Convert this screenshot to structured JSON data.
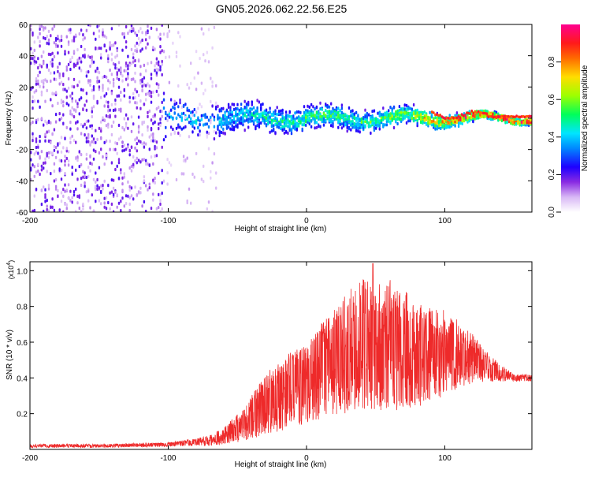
{
  "title": "GN05.2026.062.22.56.E25",
  "chart_data": [
    {
      "type": "heatmap",
      "name": "spectrogram",
      "xlabel": "Height of straight line (km)",
      "ylabel": "Frequency (Hz)",
      "xlim": [
        -200,
        163
      ],
      "ylim": [
        -60,
        60
      ],
      "xticks": [
        -200,
        -100,
        0,
        100
      ],
      "yticks": [
        60,
        40,
        20,
        0,
        -20,
        -40,
        -60
      ],
      "colorbar": {
        "label": "Normalized spectral amplitude",
        "range": [
          0.0,
          1.0
        ],
        "ticks": [
          0.0,
          0.2,
          0.4,
          0.6,
          0.8
        ],
        "tick_labels": [
          "0.0",
          "0.2",
          "0.4",
          "0.6",
          "0.8"
        ],
        "colormap": [
          "#ffffff",
          "#c9a6f0",
          "#7b1fe0",
          "#2a00ff",
          "#0066ff",
          "#00d4ff",
          "#00ff66",
          "#ccff00",
          "#ffb300",
          "#ff1a1a",
          "#ff0080"
        ]
      },
      "description_points": [
        {
          "x": -200,
          "noise_level": 0.25,
          "band_halfwidth_hz": 60
        },
        {
          "x": -110,
          "noise_level": 0.22,
          "band_halfwidth_hz": 60
        },
        {
          "x": -100,
          "noise_level": 0.3,
          "band_halfwidth_hz": 14
        },
        {
          "x": -50,
          "noise_level": 0.35,
          "band_halfwidth_hz": 12
        },
        {
          "x": 0,
          "noise_level": 0.45,
          "band_halfwidth_hz": 10
        },
        {
          "x": 50,
          "noise_level": 0.45,
          "band_halfwidth_hz": 9
        },
        {
          "x": 100,
          "noise_level": 0.7,
          "band_halfwidth_hz": 6
        },
        {
          "x": 140,
          "noise_level": 0.9,
          "band_halfwidth_hz": 3
        },
        {
          "x": 163,
          "noise_level": 0.85,
          "band_halfwidth_hz": 3
        }
      ]
    },
    {
      "type": "line",
      "name": "snr",
      "xlabel": "Height of straight line (km)",
      "ylabel": "SNR (10 * v/v)",
      "yscale_label": "(x10",
      "yscale_exponent": "4",
      "xlim": [
        -200,
        163
      ],
      "ylim": [
        0,
        1.05
      ],
      "xticks": [
        -200,
        -100,
        0,
        100
      ],
      "yticks": [
        0.2,
        0.4,
        0.6,
        0.8,
        1.0
      ],
      "ytick_labels": [
        "0.2",
        "0.4",
        "0.6",
        "0.8",
        "1.0"
      ],
      "color": "#ee2a2a",
      "envelope": {
        "x": [
          -200,
          -150,
          -100,
          -80,
          -70,
          -60,
          -50,
          -40,
          -30,
          -20,
          -10,
          0,
          10,
          20,
          30,
          40,
          50,
          60,
          70,
          80,
          90,
          100,
          110,
          120,
          130,
          140,
          150,
          163
        ],
        "upper": [
          0.03,
          0.03,
          0.04,
          0.06,
          0.08,
          0.12,
          0.2,
          0.3,
          0.42,
          0.5,
          0.55,
          0.58,
          0.7,
          0.78,
          0.88,
          0.97,
          0.92,
          0.95,
          0.9,
          0.82,
          0.8,
          0.78,
          0.72,
          0.65,
          0.55,
          0.48,
          0.42,
          0.42
        ],
        "lower": [
          0.01,
          0.01,
          0.015,
          0.02,
          0.02,
          0.03,
          0.04,
          0.06,
          0.08,
          0.1,
          0.12,
          0.14,
          0.16,
          0.18,
          0.2,
          0.22,
          0.22,
          0.22,
          0.22,
          0.24,
          0.26,
          0.3,
          0.34,
          0.37,
          0.38,
          0.38,
          0.38,
          0.38
        ],
        "peak": {
          "x": 48,
          "y": 1.04
        }
      }
    }
  ]
}
